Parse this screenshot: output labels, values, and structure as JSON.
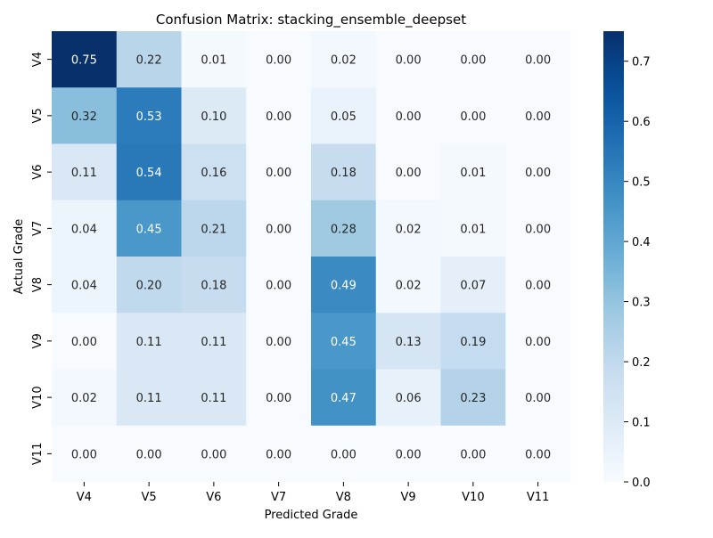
{
  "chart_data": {
    "type": "heatmap",
    "title": "Confusion Matrix: stacking_ensemble_deepset",
    "xlabel": "Predicted Grade",
    "ylabel": "Actual Grade",
    "x_categories": [
      "V4",
      "V5",
      "V6",
      "V7",
      "V8",
      "V9",
      "V10",
      "V11"
    ],
    "y_categories": [
      "V4",
      "V5",
      "V6",
      "V7",
      "V8",
      "V9",
      "V10",
      "V11"
    ],
    "values": [
      [
        0.75,
        0.22,
        0.01,
        0.0,
        0.02,
        0.0,
        0.0,
        0.0
      ],
      [
        0.32,
        0.53,
        0.1,
        0.0,
        0.05,
        0.0,
        0.0,
        0.0
      ],
      [
        0.11,
        0.54,
        0.16,
        0.0,
        0.18,
        0.0,
        0.01,
        0.0
      ],
      [
        0.04,
        0.45,
        0.21,
        0.0,
        0.28,
        0.02,
        0.01,
        0.0
      ],
      [
        0.04,
        0.2,
        0.18,
        0.0,
        0.49,
        0.02,
        0.07,
        0.0
      ],
      [
        0.0,
        0.11,
        0.11,
        0.0,
        0.45,
        0.13,
        0.19,
        0.0
      ],
      [
        0.02,
        0.11,
        0.11,
        0.0,
        0.47,
        0.06,
        0.23,
        0.0
      ],
      [
        0.0,
        0.0,
        0.0,
        0.0,
        0.0,
        0.0,
        0.0,
        0.0
      ]
    ],
    "value_format": "2 decimals",
    "colormap": "Blues",
    "colorbar": {
      "range": [
        0,
        0.75
      ],
      "ticks": [
        0.0,
        0.1,
        0.2,
        0.3,
        0.4,
        0.5,
        0.6,
        0.7
      ],
      "tick_labels": [
        "0.0",
        "0.1",
        "0.2",
        "0.3",
        "0.4",
        "0.5",
        "0.6",
        "0.7"
      ]
    },
    "legend": "colorbar-right",
    "grid": false
  }
}
